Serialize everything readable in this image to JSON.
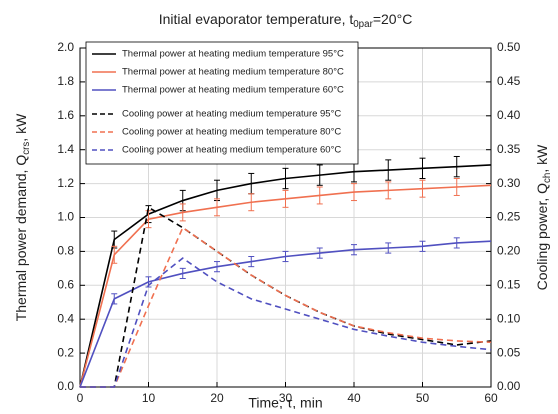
{
  "chart_data": {
    "type": "line",
    "title": {
      "text": "Initial evaporator temperature, t",
      "subscript": "0par",
      "suffix": "=20°C"
    },
    "x_label": "Time, τ, min",
    "y_label": {
      "text": "Thermal power demand, Q",
      "subscript": "crs",
      "suffix": ", kW"
    },
    "y2_label": {
      "text": "Cooling power, Q",
      "subscript": "ch",
      "suffix": ", kW"
    },
    "x": [
      0,
      5,
      10,
      15,
      20,
      25,
      30,
      35,
      40,
      45,
      50,
      55,
      60
    ],
    "xlim": [
      0,
      60
    ],
    "xticks": [
      0,
      10,
      20,
      30,
      40,
      50,
      60
    ],
    "ylim": [
      0,
      2
    ],
    "yticks": [
      {
        "value": 0,
        "label": "0.0"
      },
      {
        "value": 0.2,
        "label": "0.2"
      },
      {
        "value": 0.4,
        "label": "0.4"
      },
      {
        "value": 0.6,
        "label": "0.6"
      },
      {
        "value": 0.8,
        "label": "0.8"
      },
      {
        "value": 1,
        "label": "1.0"
      },
      {
        "value": 1.2,
        "label": "1.2"
      },
      {
        "value": 1.4,
        "label": "1.4"
      },
      {
        "value": 1.6,
        "label": "1.6"
      },
      {
        "value": 1.8,
        "label": "1.8"
      },
      {
        "value": 2,
        "label": "2.0"
      }
    ],
    "y2lim": [
      0,
      0.5
    ],
    "y2ticks": [
      {
        "value": 0,
        "label": "0.00"
      },
      {
        "value": 0.05,
        "label": "0.05"
      },
      {
        "value": 0.1,
        "label": "0.10"
      },
      {
        "value": 0.15,
        "label": "0.15"
      },
      {
        "value": 0.2,
        "label": "0.20"
      },
      {
        "value": 0.25,
        "label": "0.25"
      },
      {
        "value": 0.3,
        "label": "0.30"
      },
      {
        "value": 0.35,
        "label": "0.35"
      },
      {
        "value": 0.4,
        "label": "0.40"
      },
      {
        "value": 0.45,
        "label": "0.45"
      },
      {
        "value": 0.5,
        "label": "0.50"
      }
    ],
    "grid": true,
    "legend": "upper left",
    "series": [
      {
        "name": "Thermal power at heating medium temperature 95°C",
        "color": "#000000",
        "dash": false,
        "values": [
          0,
          0.87,
          1.02,
          1.1,
          1.16,
          1.2,
          1.23,
          1.25,
          1.27,
          1.28,
          1.29,
          1.3,
          1.31
        ],
        "errors": [
          null,
          0.05,
          0.05,
          0.06,
          0.06,
          0.06,
          0.06,
          0.06,
          0.06,
          0.06,
          0.06,
          0.06,
          null
        ]
      },
      {
        "name": "Thermal power at heating medium temperature 80°C",
        "color": "#f07050",
        "dash": false,
        "values": [
          0,
          0.78,
          0.99,
          1.03,
          1.06,
          1.09,
          1.11,
          1.13,
          1.15,
          1.16,
          1.17,
          1.18,
          1.19
        ],
        "errors": [
          null,
          0.05,
          0.05,
          0.05,
          0.05,
          0.05,
          0.05,
          0.05,
          0.05,
          0.05,
          0.05,
          0.05,
          null
        ]
      },
      {
        "name": "Thermal power at heating medium temperature 60°C",
        "color": "#5050c0",
        "dash": false,
        "values": [
          0,
          0.52,
          0.62,
          0.67,
          0.71,
          0.74,
          0.77,
          0.79,
          0.81,
          0.82,
          0.83,
          0.85,
          0.86
        ],
        "errors": [
          null,
          0.03,
          0.03,
          0.03,
          0.03,
          0.03,
          0.03,
          0.03,
          0.03,
          0.03,
          0.03,
          0.03,
          null
        ]
      },
      {
        "name": "Cooling power at heating medium temperature 95°C",
        "color": "#000000",
        "dash": true,
        "axis": "y2",
        "values": [
          0,
          0,
          0.265,
          0.235,
          0.2,
          0.165,
          0.135,
          0.11,
          0.09,
          0.078,
          0.07,
          0.062,
          0.068
        ]
      },
      {
        "name": "Cooling power at heating medium temperature 80°C",
        "color": "#f07050",
        "dash": true,
        "axis": "y2",
        "values": [
          0,
          0,
          0.12,
          0.235,
          0.2,
          0.165,
          0.135,
          0.11,
          0.09,
          0.08,
          0.072,
          0.068,
          0.066
        ]
      },
      {
        "name": "Cooling power at heating medium temperature 60°C",
        "color": "#5050c0",
        "dash": true,
        "axis": "y2",
        "values": [
          0,
          0,
          0.15,
          0.19,
          0.155,
          0.13,
          0.115,
          0.1,
          0.085,
          0.075,
          0.066,
          0.06,
          0.055
        ]
      }
    ]
  }
}
